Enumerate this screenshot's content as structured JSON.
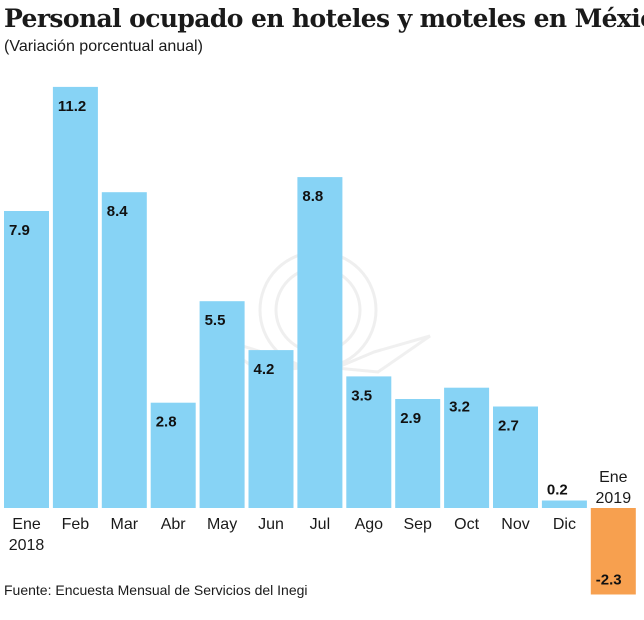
{
  "chart_data": {
    "type": "bar",
    "title": "Personal ocupado en hoteles y moteles en México",
    "subtitle": "(Variación porcentual anual)",
    "categories": [
      "Ene 2018",
      "Feb",
      "Mar",
      "Abr",
      "May",
      "Jun",
      "Jul",
      "Ago",
      "Sep",
      "Oct",
      "Nov",
      "Dic",
      "Ene 2019"
    ],
    "category_lines": [
      [
        "Ene",
        "2018"
      ],
      [
        "Feb"
      ],
      [
        "Mar"
      ],
      [
        "Abr"
      ],
      [
        "May"
      ],
      [
        "Jun"
      ],
      [
        "Jul"
      ],
      [
        "Ago"
      ],
      [
        "Sep"
      ],
      [
        "Oct"
      ],
      [
        "Nov"
      ],
      [
        "Dic"
      ],
      [
        "Ene",
        "2019"
      ]
    ],
    "values": [
      7.9,
      11.2,
      8.4,
      2.8,
      5.5,
      4.2,
      8.8,
      3.5,
      2.9,
      3.2,
      2.7,
      0.2,
      -2.3
    ],
    "value_labels": [
      "7.9",
      "11.2",
      "8.4",
      "2.8",
      "5.5",
      "4.2",
      "8.8",
      "3.5",
      "2.9",
      "3.2",
      "2.7",
      "0.2",
      "-2.3"
    ],
    "xlabel": "",
    "ylabel": "",
    "ylim": [
      -2.3,
      11.2
    ],
    "grid": false,
    "colors": {
      "positive": "#87d3f5",
      "negative": "#f7a04f"
    },
    "source": "Fuente: Encuesta Mensual de Servicios del Inegi"
  }
}
